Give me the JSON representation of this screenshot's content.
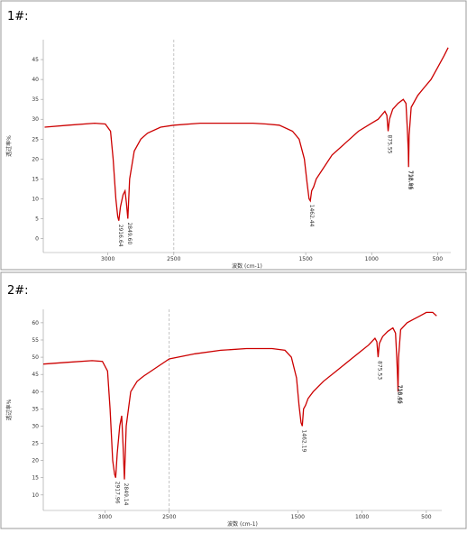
{
  "chart_data": [
    {
      "type": "line",
      "label": "1#:",
      "xlabel": "波数 (cm-1)",
      "ylabel": "透过率%",
      "color": "#cc0000",
      "xlim": [
        3490,
        400
      ],
      "ylim": [
        -3.5,
        50
      ],
      "xticks": [
        3000,
        2500,
        1500,
        1000,
        500
      ],
      "yticks": [
        0,
        5,
        10,
        15,
        20,
        25,
        30,
        35,
        40,
        45
      ],
      "vline": 2500,
      "x": [
        3480,
        3300,
        3100,
        3020,
        2980,
        2960,
        2940,
        2925,
        2917,
        2905,
        2885,
        2870,
        2860,
        2849,
        2835,
        2800,
        2750,
        2700,
        2600,
        2500,
        2300,
        2100,
        1900,
        1800,
        1700,
        1600,
        1550,
        1510,
        1490,
        1475,
        1465,
        1455,
        1440,
        1420,
        1380,
        1300,
        1200,
        1100,
        1000,
        950,
        900,
        885,
        875,
        865,
        840,
        800,
        760,
        740,
        730,
        722,
        720,
        716,
        700,
        650,
        600,
        550,
        500,
        450,
        420
      ],
      "values": [
        28,
        28.5,
        29,
        28.8,
        27,
        20,
        10,
        5.5,
        4.5,
        8,
        11,
        12,
        9,
        5,
        15,
        22,
        25,
        26.5,
        28,
        28.5,
        29,
        29,
        29,
        28.8,
        28.5,
        27,
        25,
        20,
        14,
        10,
        9.5,
        12,
        13,
        15,
        17,
        21,
        24,
        27,
        29,
        30,
        32,
        31,
        27,
        30,
        32.5,
        34,
        35,
        34,
        28,
        22,
        18,
        26,
        33,
        36,
        38,
        40,
        43,
        46,
        48
      ],
      "annotations": [
        {
          "text": "2916.64",
          "x": 2917,
          "y": 4.5
        },
        {
          "text": "2849.60",
          "x": 2849,
          "y": 5
        },
        {
          "text": "1462.44",
          "x": 1465,
          "y": 9.5
        },
        {
          "text": "875.55",
          "x": 875,
          "y": 27
        },
        {
          "text": "720.43",
          "x": 720,
          "y": 18
        },
        {
          "text": "718.96",
          "x": 716,
          "y": 18
        }
      ]
    },
    {
      "type": "line",
      "label": "2#:",
      "xlabel": "波数 (cm-1)",
      "ylabel": "透过率%",
      "color": "#cc0000",
      "xlim": [
        3480,
        380
      ],
      "ylim": [
        5.5,
        63.9
      ],
      "xticks": [
        3000,
        2500,
        1500,
        1000,
        500
      ],
      "yticks": [
        10,
        15,
        20,
        25,
        30,
        35,
        40,
        45,
        50,
        55,
        60
      ],
      "vline": 2500,
      "x": [
        3480,
        3300,
        3100,
        3020,
        2980,
        2960,
        2940,
        2925,
        2917,
        2905,
        2885,
        2870,
        2860,
        2849,
        2835,
        2800,
        2750,
        2700,
        2600,
        2500,
        2300,
        2100,
        1900,
        1800,
        1700,
        1600,
        1550,
        1510,
        1490,
        1475,
        1465,
        1455,
        1440,
        1420,
        1380,
        1300,
        1200,
        1100,
        1000,
        950,
        900,
        885,
        875,
        865,
        840,
        800,
        760,
        740,
        730,
        722,
        720,
        716,
        700,
        650,
        600,
        550,
        500,
        450,
        420
      ],
      "values": [
        48,
        48.5,
        49,
        48.8,
        46,
        35,
        20,
        16,
        15,
        22,
        30,
        33,
        25,
        14.5,
        30,
        40,
        43,
        44.5,
        47,
        49.5,
        51,
        52,
        52.5,
        52.5,
        52.5,
        52,
        50,
        44,
        36,
        31,
        30,
        35,
        36,
        38,
        40,
        43,
        46,
        49,
        52,
        53.5,
        55.5,
        54.5,
        50,
        54,
        56,
        57.5,
        58.5,
        57,
        50,
        43,
        40,
        50,
        58,
        60,
        61,
        62,
        63,
        63,
        62
      ],
      "annotations": [
        {
          "text": "2917.96",
          "x": 2917,
          "y": 15
        },
        {
          "text": "2849.14",
          "x": 2849,
          "y": 14.5
        },
        {
          "text": "1462.19",
          "x": 1465,
          "y": 30
        },
        {
          "text": "875.53",
          "x": 875,
          "y": 50
        },
        {
          "text": "720.52",
          "x": 722,
          "y": 43
        },
        {
          "text": "718.46",
          "x": 716,
          "y": 43
        }
      ]
    }
  ]
}
